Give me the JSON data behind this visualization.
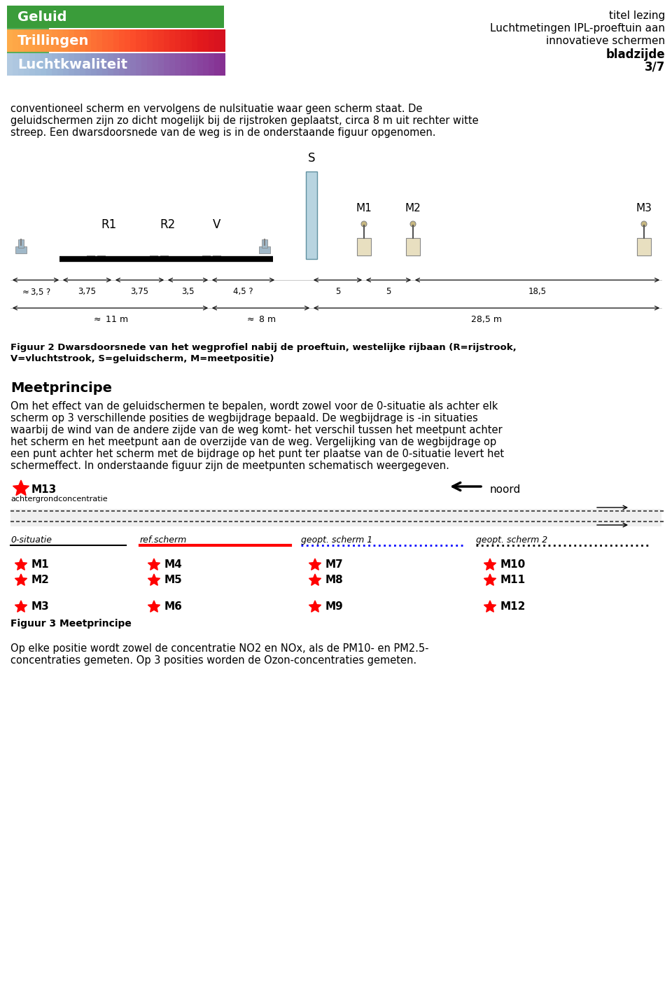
{
  "bg_color": "#ffffff",
  "header": {
    "logo_colors": [
      "#4a9c4a",
      "#d4a017",
      "#7b68aa"
    ],
    "logo_texts": [
      "Geluid",
      "Trillingen",
      "Luchtkwaliteit"
    ],
    "title_lines": [
      "titel lezing",
      "Luchtmetingen IPL-proeftuin aan",
      "innovatieve schermen",
      "bladzijde",
      "3/7"
    ]
  },
  "intro_text": [
    "conventioneel scherm en vervolgens de nulsituatie waar geen scherm staat. De",
    "geluidschermen zijn zo dicht mogelijk bij de rijstroken geplaatst, circa 8 m uit rechter witte",
    "streep. Een dwarsdoorsnede van de weg is in de onderstaande figuur opgenomen."
  ],
  "fig2_caption": "Figuur 2 Dwarsdoorsnede van het wegprofiel nabij de proeftuin, westelijke rijbaan (R=rijstrook,\nV=vluchtstrook, S=geluidscherm, M=meetpositie)",
  "meetprincipe_title": "Meetprincipe",
  "meetprincipe_text": [
    "Om het effect van de geluidschermen te bepalen, wordt zowel voor de 0-situatie als achter elk",
    "scherm op 3 verschillende posities de wegbijdrage bepaald. De wegbijdrage is -in situaties",
    "waarbij de wind van de andere zijde van de weg komt- het verschil tussen het meetpunt achter",
    "het scherm en het meetpunt aan de overzijde van de weg. Vergelijking van de wegbijdrage op",
    "een punt achter het scherm met de bijdrage op het punt ter plaatse van de 0-situatie levert het",
    "schermeffect. In onderstaande figuur zijn de meetpunten schematisch weergegeven."
  ],
  "fig3_caption": "Figuur 3 Meetprincipe",
  "fig3_last_text": [
    "Op elke positie wordt zowel de concentratie NO2 en NOx, als de PM10- en PM2.5-",
    "concentraties gemeten. Op 3 posities worden de Ozon-concentraties gemeten."
  ]
}
